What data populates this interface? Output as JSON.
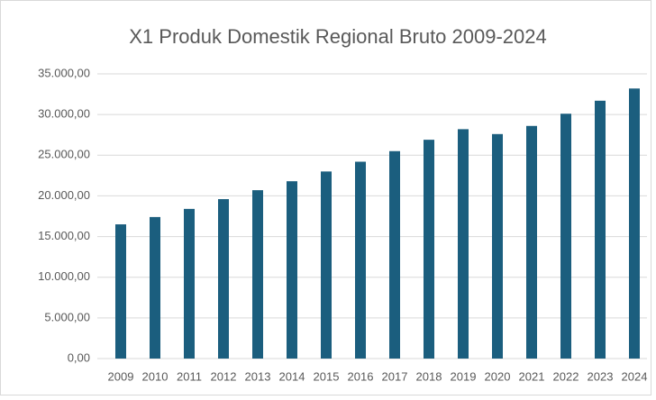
{
  "chart_data": {
    "type": "bar",
    "title": "X1 Produk Domestik Regional Bruto 2009-2024",
    "categories": [
      "2009",
      "2010",
      "2011",
      "2012",
      "2013",
      "2014",
      "2015",
      "2016",
      "2017",
      "2018",
      "2019",
      "2020",
      "2021",
      "2022",
      "2023",
      "2024"
    ],
    "values": [
      16500,
      17400,
      18400,
      19600,
      20700,
      21800,
      23000,
      24200,
      25500,
      26900,
      28200,
      27600,
      28600,
      30100,
      31700,
      33200
    ],
    "color": "#1b5e7e",
    "ylim": [
      0,
      35000
    ],
    "yticks": [
      {
        "value": 0,
        "label": "0,00"
      },
      {
        "value": 5000,
        "label": "5.000,00"
      },
      {
        "value": 10000,
        "label": "10.000,00"
      },
      {
        "value": 15000,
        "label": "15.000,00"
      },
      {
        "value": 20000,
        "label": "20.000,00"
      },
      {
        "value": 25000,
        "label": "25.000,00"
      },
      {
        "value": 30000,
        "label": "30.000,00"
      },
      {
        "value": 35000,
        "label": "35.000,00"
      }
    ],
    "grid": true
  }
}
